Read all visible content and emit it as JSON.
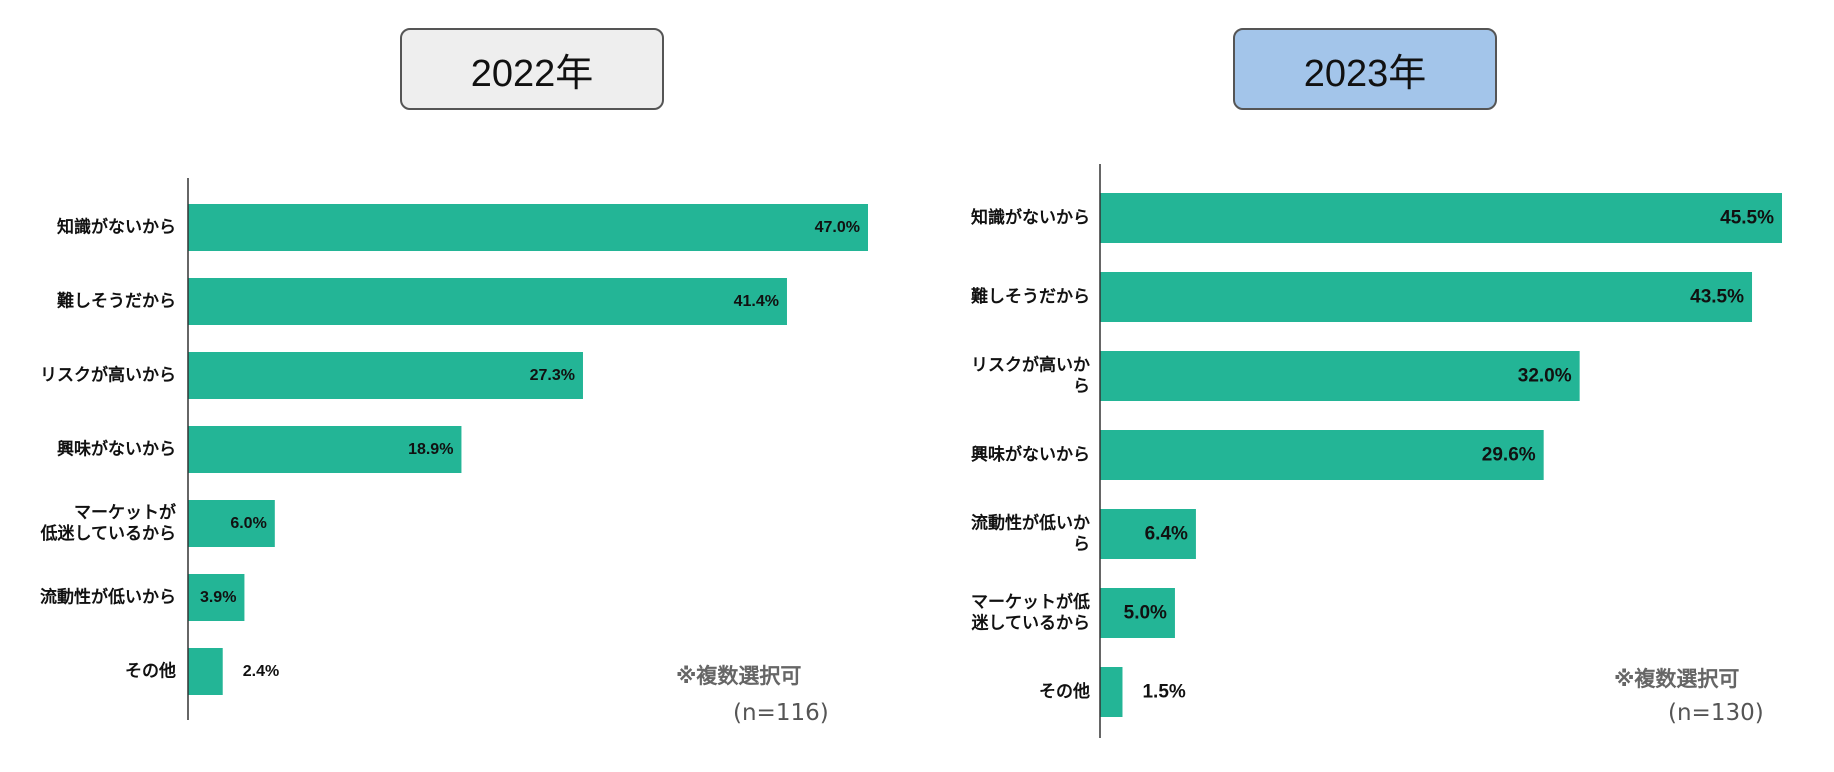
{
  "colors": {
    "bar": "#23b596",
    "badge_2022": "#eeeeee",
    "badge_2023": "#a3c5ea"
  },
  "chart_data": [
    {
      "type": "bar",
      "orientation": "horizontal",
      "title": "2022年",
      "categories": [
        [
          "知識がないから"
        ],
        [
          "難しそうだから"
        ],
        [
          "リスクが高いから"
        ],
        [
          "興味がないから"
        ],
        [
          "マーケットが",
          "低迷しているから"
        ],
        [
          "流動性が低いから"
        ],
        [
          "その他"
        ]
      ],
      "values": [
        47.0,
        41.4,
        27.3,
        18.9,
        6.0,
        3.9,
        2.4
      ],
      "labels": [
        "47.0%",
        "41.4%",
        "27.3%",
        "18.9%",
        "6.0%",
        "3.9%",
        "2.4%"
      ],
      "xlim": [
        0,
        47.0
      ],
      "grid": false,
      "note": "※複数選択可",
      "n": "(n=116)"
    },
    {
      "type": "bar",
      "orientation": "horizontal",
      "title": "2023年",
      "categories": [
        [
          "知識がないから"
        ],
        [
          "難しそうだから"
        ],
        [
          "リスクが高いか",
          "ら"
        ],
        [
          "興味がないから"
        ],
        [
          "流動性が低いか",
          "ら"
        ],
        [
          "マーケットが低",
          "迷しているから"
        ],
        [
          "その他"
        ]
      ],
      "values": [
        45.5,
        43.5,
        32.0,
        29.6,
        6.4,
        5.0,
        1.5
      ],
      "labels": [
        "45.5%",
        "43.5%",
        "32.0%",
        "29.6%",
        "6.4%",
        "5.0%",
        "1.5%"
      ],
      "xlim": [
        0,
        45.5
      ],
      "grid": false,
      "note": "※複数選択可",
      "n": "(n=130)"
    }
  ]
}
